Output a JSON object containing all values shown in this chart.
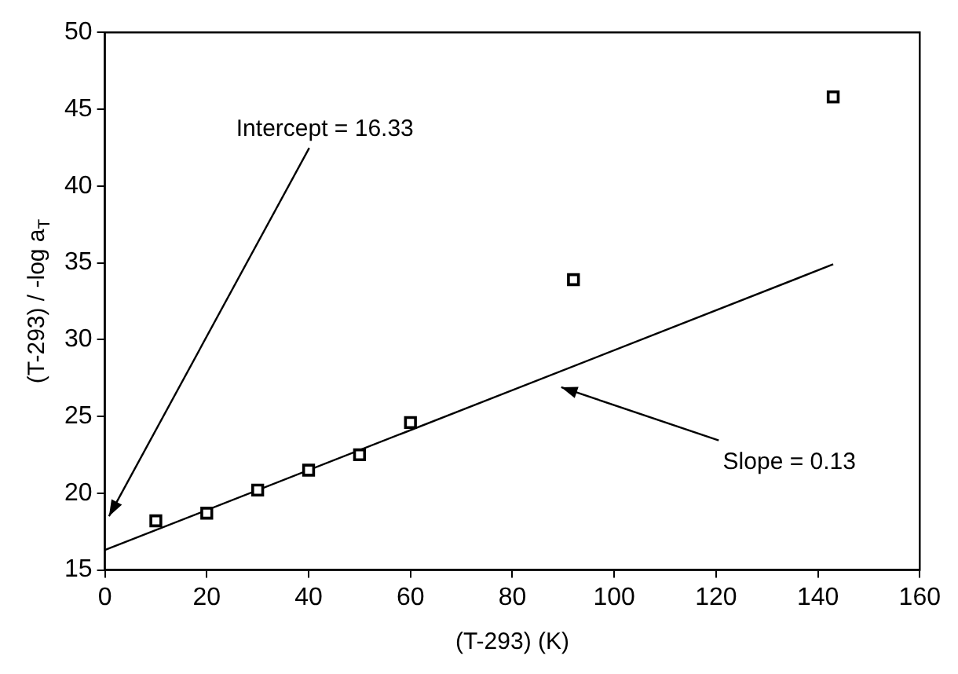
{
  "chart_data": {
    "type": "scatter",
    "xlabel": "(T-293) (K)",
    "ylabel": "(T-293) / -log a$_{T}$",
    "xlim": [
      0,
      160
    ],
    "xticks": [
      0,
      20,
      40,
      60,
      80,
      100,
      120,
      140,
      160
    ],
    "ylim": [
      15,
      50
    ],
    "yticks": [
      15,
      20,
      25,
      30,
      35,
      40,
      45,
      50
    ],
    "grid": false,
    "legend": false,
    "marker": "square",
    "series": [
      {
        "color": "#000000",
        "x": [
          10,
          20,
          30,
          40,
          50,
          60,
          92,
          143
        ],
        "values": [
          18.2,
          18.7,
          20.2,
          21.5,
          22.5,
          24.6,
          33.9,
          45.8
        ]
      },
      {
        "type": "line",
        "color": "#000000",
        "marker": "none",
        "line_style": "solid",
        "x": [
          0,
          143
        ],
        "values": [
          16.3,
          34.9
        ]
      }
    ],
    "annotations": [
      "Intercept = 16.33",
      "Slope = 0.13"
    ]
  }
}
